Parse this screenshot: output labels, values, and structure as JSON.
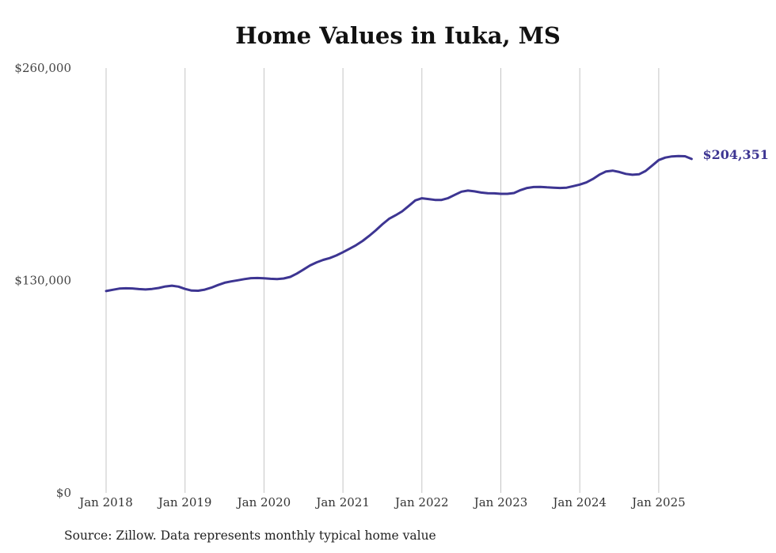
{
  "chart_data": {
    "type": "line",
    "title": "Home Values in Iuka, MS",
    "xlabel": "",
    "ylabel": "",
    "ylim": [
      0,
      260000
    ],
    "y_ticks": [
      "$260,000",
      "$130,000",
      "$0"
    ],
    "y_tick_values": [
      260000,
      130000,
      0
    ],
    "x_ticks": [
      "Jan 2018",
      "Jan 2019",
      "Jan 2020",
      "Jan 2021",
      "Jan 2022",
      "Jan 2023",
      "Jan 2024",
      "Jan 2025"
    ],
    "grid": "vertical lines at x ticks",
    "line_color": "#3d3592",
    "end_label": "$204,351",
    "series": [
      {
        "x": [
          "2018-01",
          "2018-02",
          "2018-03",
          "2018-04",
          "2018-05",
          "2018-06",
          "2018-07",
          "2018-08",
          "2018-09",
          "2018-10",
          "2018-11",
          "2018-12",
          "2019-01",
          "2019-02",
          "2019-03",
          "2019-04",
          "2019-05",
          "2019-06",
          "2019-07",
          "2019-08",
          "2019-09",
          "2019-10",
          "2019-11",
          "2019-12",
          "2020-01",
          "2020-02",
          "2020-03",
          "2020-04",
          "2020-05",
          "2020-06",
          "2020-07",
          "2020-08",
          "2020-09",
          "2020-10",
          "2020-11",
          "2020-12",
          "2021-01",
          "2021-02",
          "2021-03",
          "2021-04",
          "2021-05",
          "2021-06",
          "2021-07",
          "2021-08",
          "2021-09",
          "2021-10",
          "2021-11",
          "2021-12",
          "2022-01",
          "2022-02",
          "2022-03",
          "2022-04",
          "2022-05",
          "2022-06",
          "2022-07",
          "2022-08",
          "2022-09",
          "2022-10",
          "2022-11",
          "2022-12",
          "2023-01",
          "2023-02",
          "2023-03",
          "2023-04",
          "2023-05",
          "2023-06",
          "2023-07",
          "2023-08",
          "2023-09",
          "2023-10",
          "2023-11",
          "2023-12",
          "2024-01",
          "2024-02",
          "2024-03",
          "2024-04",
          "2024-05",
          "2024-06",
          "2024-07",
          "2024-08",
          "2024-09",
          "2024-10",
          "2024-11",
          "2024-12",
          "2025-01",
          "2025-02",
          "2025-03",
          "2025-04",
          "2025-05",
          "2025-06"
        ],
        "values": [
          123500,
          124300,
          125000,
          125200,
          125100,
          124700,
          124500,
          124800,
          125400,
          126300,
          126800,
          126200,
          124800,
          123800,
          123700,
          124400,
          125600,
          127200,
          128600,
          129400,
          130100,
          130800,
          131400,
          131500,
          131300,
          131000,
          130800,
          131200,
          132200,
          134200,
          136700,
          139200,
          141100,
          142600,
          143700,
          145300,
          147300,
          149400,
          151600,
          154200,
          157300,
          160700,
          164400,
          167700,
          169900,
          172300,
          175600,
          179000,
          180300,
          179800,
          179300,
          179300,
          180400,
          182400,
          184300,
          185000,
          184500,
          183800,
          183400,
          183300,
          183000,
          183000,
          183500,
          185300,
          186600,
          187200,
          187300,
          187000,
          186800,
          186600,
          186800,
          187700,
          188700,
          190000,
          192100,
          194800,
          196700,
          197200,
          196400,
          195200,
          194700,
          195000,
          197000,
          200300,
          203700,
          205200,
          205900,
          206100,
          206000,
          204351
        ]
      }
    ]
  },
  "source_note": "Source: Zillow. Data represents monthly typical home value"
}
